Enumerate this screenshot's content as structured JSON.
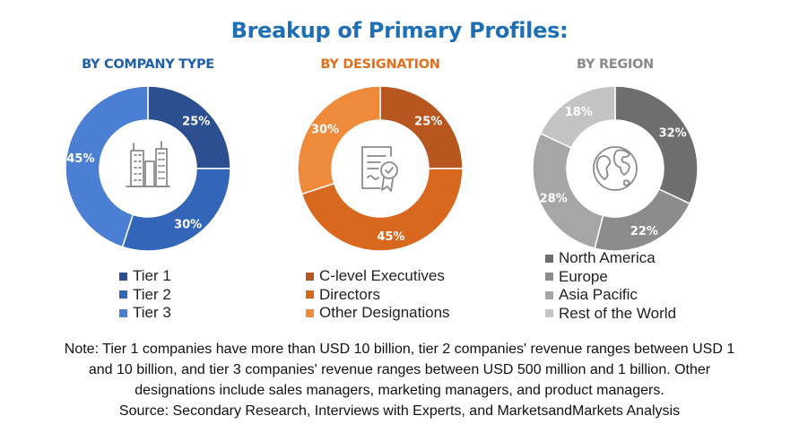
{
  "title": "Breakup of Primary Profiles:",
  "chart_data": [
    {
      "type": "pie",
      "title": "BY COMPANY TYPE",
      "title_color": "#1f5fa8",
      "categories": [
        "Tier 1",
        "Tier 2",
        "Tier 3"
      ],
      "values": [
        25,
        30,
        45
      ],
      "labels": [
        "25%",
        "30%",
        "45%"
      ],
      "colors": [
        "#2c4f8f",
        "#3366b8",
        "#4a7fd4"
      ],
      "center_icon": "buildings-icon"
    },
    {
      "type": "pie",
      "title": "BY DESIGNATION",
      "title_color": "#e0701f",
      "categories": [
        "C-level Executives",
        "Directors",
        "Other Designations"
      ],
      "values": [
        25,
        45,
        30
      ],
      "labels": [
        "25%",
        "45%",
        "30%"
      ],
      "colors": [
        "#b8561f",
        "#d9681f",
        "#ef8a3a"
      ],
      "center_icon": "certificate-icon"
    },
    {
      "type": "pie",
      "title": "BY REGION",
      "title_color": "#8a8a8a",
      "categories": [
        "North America",
        "Europe",
        "Asia Pacific",
        "Rest of the World"
      ],
      "values": [
        32,
        22,
        28,
        18
      ],
      "labels": [
        "32%",
        "22%",
        "28%",
        "18%"
      ],
      "colors": [
        "#6e6e6e",
        "#8c8c8c",
        "#a6a6a6",
        "#c4c4c4"
      ],
      "center_icon": "globe-icon"
    }
  ],
  "note": {
    "line1": "Note: Tier 1 companies have more than USD 10 billion, tier 2 companies' revenue ranges between USD 1",
    "line2": "and 10 billion, and tier 3 companies' revenue ranges between USD 500 million and 1 billion. Other",
    "line3": "designations include sales managers, marketing managers, and product managers.",
    "line4": "Source: Secondary Research, Interviews with Experts, and MarketsandMarkets Analysis"
  }
}
